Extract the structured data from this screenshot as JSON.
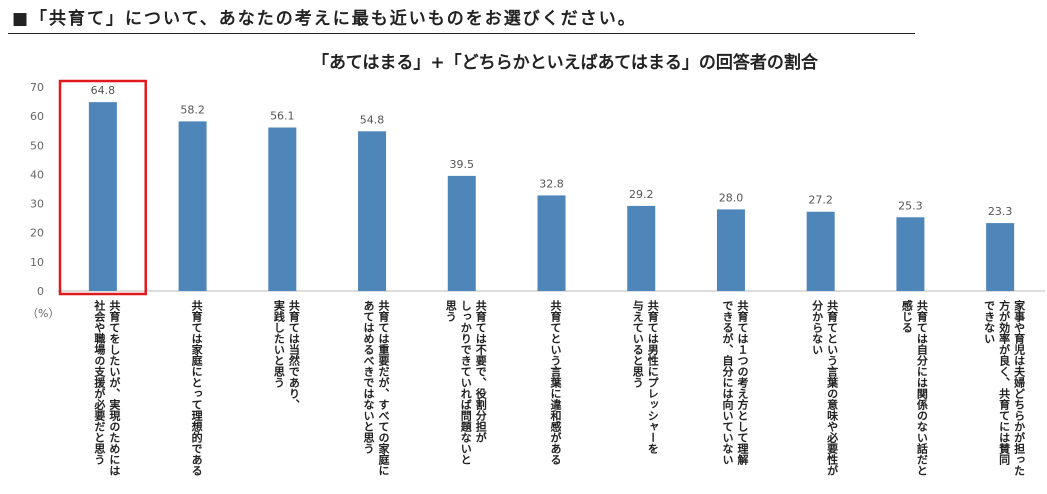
{
  "question": "■「共育て」について、あなたの考えに最も近いものをお選びください。",
  "chart_title": "「あてはまる」+「どちらかといえばあてはまる」の回答者の割合",
  "chart_data": {
    "type": "bar",
    "title": "「あてはまる」+「どちらかといえばあてはまる」の回答者の割合",
    "ylabel": "（%）",
    "ylim": [
      0,
      70
    ],
    "yticks": [
      "0",
      "10",
      "20",
      "30",
      "40",
      "50",
      "60",
      "70"
    ],
    "bar_color": "#4f86b9",
    "highlight_color": "#e0191f",
    "highlight_index": 0,
    "grid": false,
    "categories": [
      [
        "共育てをしたいが、実現のためには",
        "社会や職場の支援が必要だと思う"
      ],
      [
        "共育ては家庭にとって理想的である"
      ],
      [
        "共育ては当然であり、",
        "実践したいと思う"
      ],
      [
        "共育ては重要だが、すべての家庭に",
        "あてはめるべきではないと思う"
      ],
      [
        "共育ては不要で、役割分担が",
        "しっかりできていれば問題ないと",
        "思う"
      ],
      [
        "共育てという言葉に違和感がある"
      ],
      [
        "共育ては男性にプレッシャーを",
        "与えていると思う"
      ],
      [
        "共育ては１つの考え方として理解",
        "できるが、自分には向いていない"
      ],
      [
        "共育てという言葉の意味や必要性が",
        "分からない"
      ],
      [
        "共育ては自分には関係のない話だと",
        "感じる"
      ],
      [
        "家事や育児は夫婦どちらかが担った",
        "方が効率が良く、共育てには賛同",
        "できない"
      ]
    ],
    "value_labels": [
      "64.8",
      "58.2",
      "56.1",
      "54.8",
      "39.5",
      "32.8",
      "29.2",
      "28.0",
      "27.2",
      "25.3",
      "23.3"
    ],
    "values": [
      64.8,
      58.2,
      56.1,
      54.8,
      39.5,
      32.8,
      29.2,
      28.0,
      27.2,
      25.3,
      23.3
    ]
  }
}
